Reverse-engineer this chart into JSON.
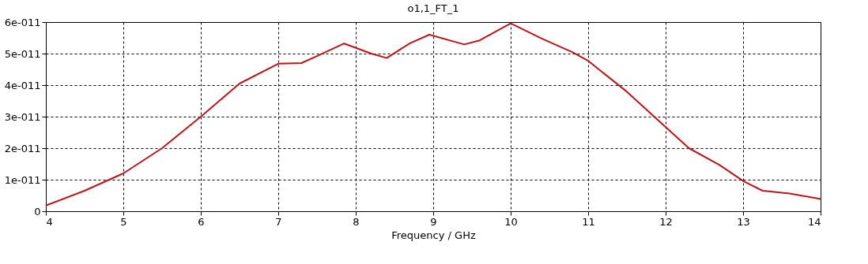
{
  "chart_data": {
    "type": "line",
    "title": "o1,1_FT_1",
    "xlabel": "Frequency / GHz",
    "series": [
      {
        "color": "#c0141c",
        "x": [
          4,
          4.5,
          5,
          5.5,
          6,
          6.5,
          7,
          7.3,
          7.5,
          7.85,
          8.2,
          8.4,
          8.7,
          8.95,
          9.4,
          9.6,
          10,
          10.4,
          10.8,
          11,
          11.5,
          12,
          12.3,
          12.7,
          13,
          13.25,
          13.6,
          14
        ],
        "values": [
          1.8e-12,
          6.5e-12,
          1.2e-11,
          2e-11,
          3e-11,
          4.05e-11,
          4.68e-11,
          4.7e-11,
          4.92e-11,
          5.32e-11,
          5e-11,
          4.86e-11,
          5.33e-11,
          5.6e-11,
          5.29e-11,
          5.42e-11,
          5.96e-11,
          5.48e-11,
          5.04e-11,
          4.77e-11,
          3.79e-11,
          2.67e-11,
          2e-11,
          1.46e-11,
          9.6e-12,
          6.5e-12,
          5.6e-12,
          3.9e-12
        ]
      }
    ],
    "xlim": [
      4,
      14
    ],
    "xticks": [
      4,
      5,
      6,
      7,
      8,
      9,
      10,
      11,
      12,
      13,
      14
    ],
    "ylim": [
      0,
      6e-11
    ],
    "yticks": [
      0,
      {
        "value": 1e-11,
        "label": "1e-011"
      },
      {
        "value": 2e-11,
        "label": "2e-011"
      },
      {
        "value": 3e-11,
        "label": "3e-011"
      },
      {
        "value": 4e-11,
        "label": "4e-011"
      },
      {
        "value": 5e-11,
        "label": "5e-011"
      },
      {
        "value": 6e-11,
        "label": "6e-011"
      }
    ],
    "grid": true,
    "line_style": "solid",
    "marker": "none"
  }
}
